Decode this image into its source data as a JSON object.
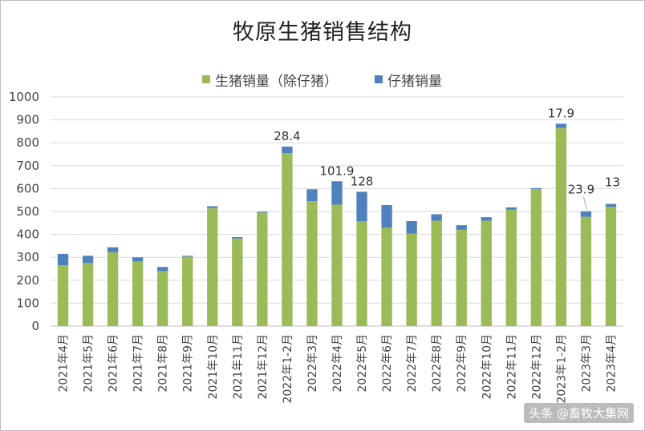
{
  "chart_data": {
    "type": "bar",
    "stacked": true,
    "title": "牧原生猪销售结构",
    "xlabel": "",
    "ylabel": "",
    "ylim": [
      0,
      1000
    ],
    "yticks": [
      0,
      100,
      200,
      300,
      400,
      500,
      600,
      700,
      800,
      900,
      1000
    ],
    "grid": true,
    "legend_position": "top",
    "categories": [
      "2021年4月",
      "2021年5月",
      "2021年6月",
      "2021年7月",
      "2021年8月",
      "2021年9月",
      "2021年10月",
      "2021年11月",
      "2021年12月",
      "2022年1-2月",
      "2022年3月",
      "2022年4月",
      "2022年5月",
      "2022年6月",
      "2022年7月",
      "2022年8月",
      "2022年9月",
      "2022年10月",
      "2022年11月",
      "2022年12月",
      "2023年1-2月",
      "2023年3月",
      "2023年4月"
    ],
    "series": [
      {
        "name": "生猪销量（除仔猪）",
        "color": "#9bbb59",
        "values": [
          265,
          275,
          322,
          282,
          240,
          303,
          515,
          382,
          495,
          755,
          545,
          530,
          458,
          430,
          403,
          460,
          420,
          460,
          508,
          598,
          865,
          477,
          520
        ]
      },
      {
        "name": "仔猪销量",
        "color": "#4f81bd",
        "values": [
          50,
          32,
          22,
          18,
          18,
          4,
          8,
          6,
          4,
          28.4,
          52,
          101.9,
          128,
          98,
          55,
          28,
          20,
          15,
          10,
          4,
          17.9,
          23.9,
          13
        ]
      }
    ],
    "data_labels": [
      {
        "category_index": 9,
        "text": "28.4"
      },
      {
        "category_index": 11,
        "text": "101.9"
      },
      {
        "category_index": 12,
        "text": "128"
      },
      {
        "category_index": 20,
        "text": "17.9"
      },
      {
        "category_index": 21,
        "text": "23.9"
      },
      {
        "category_index": 22,
        "text": "13"
      }
    ]
  },
  "watermark": "头条 @畜牧大集网"
}
